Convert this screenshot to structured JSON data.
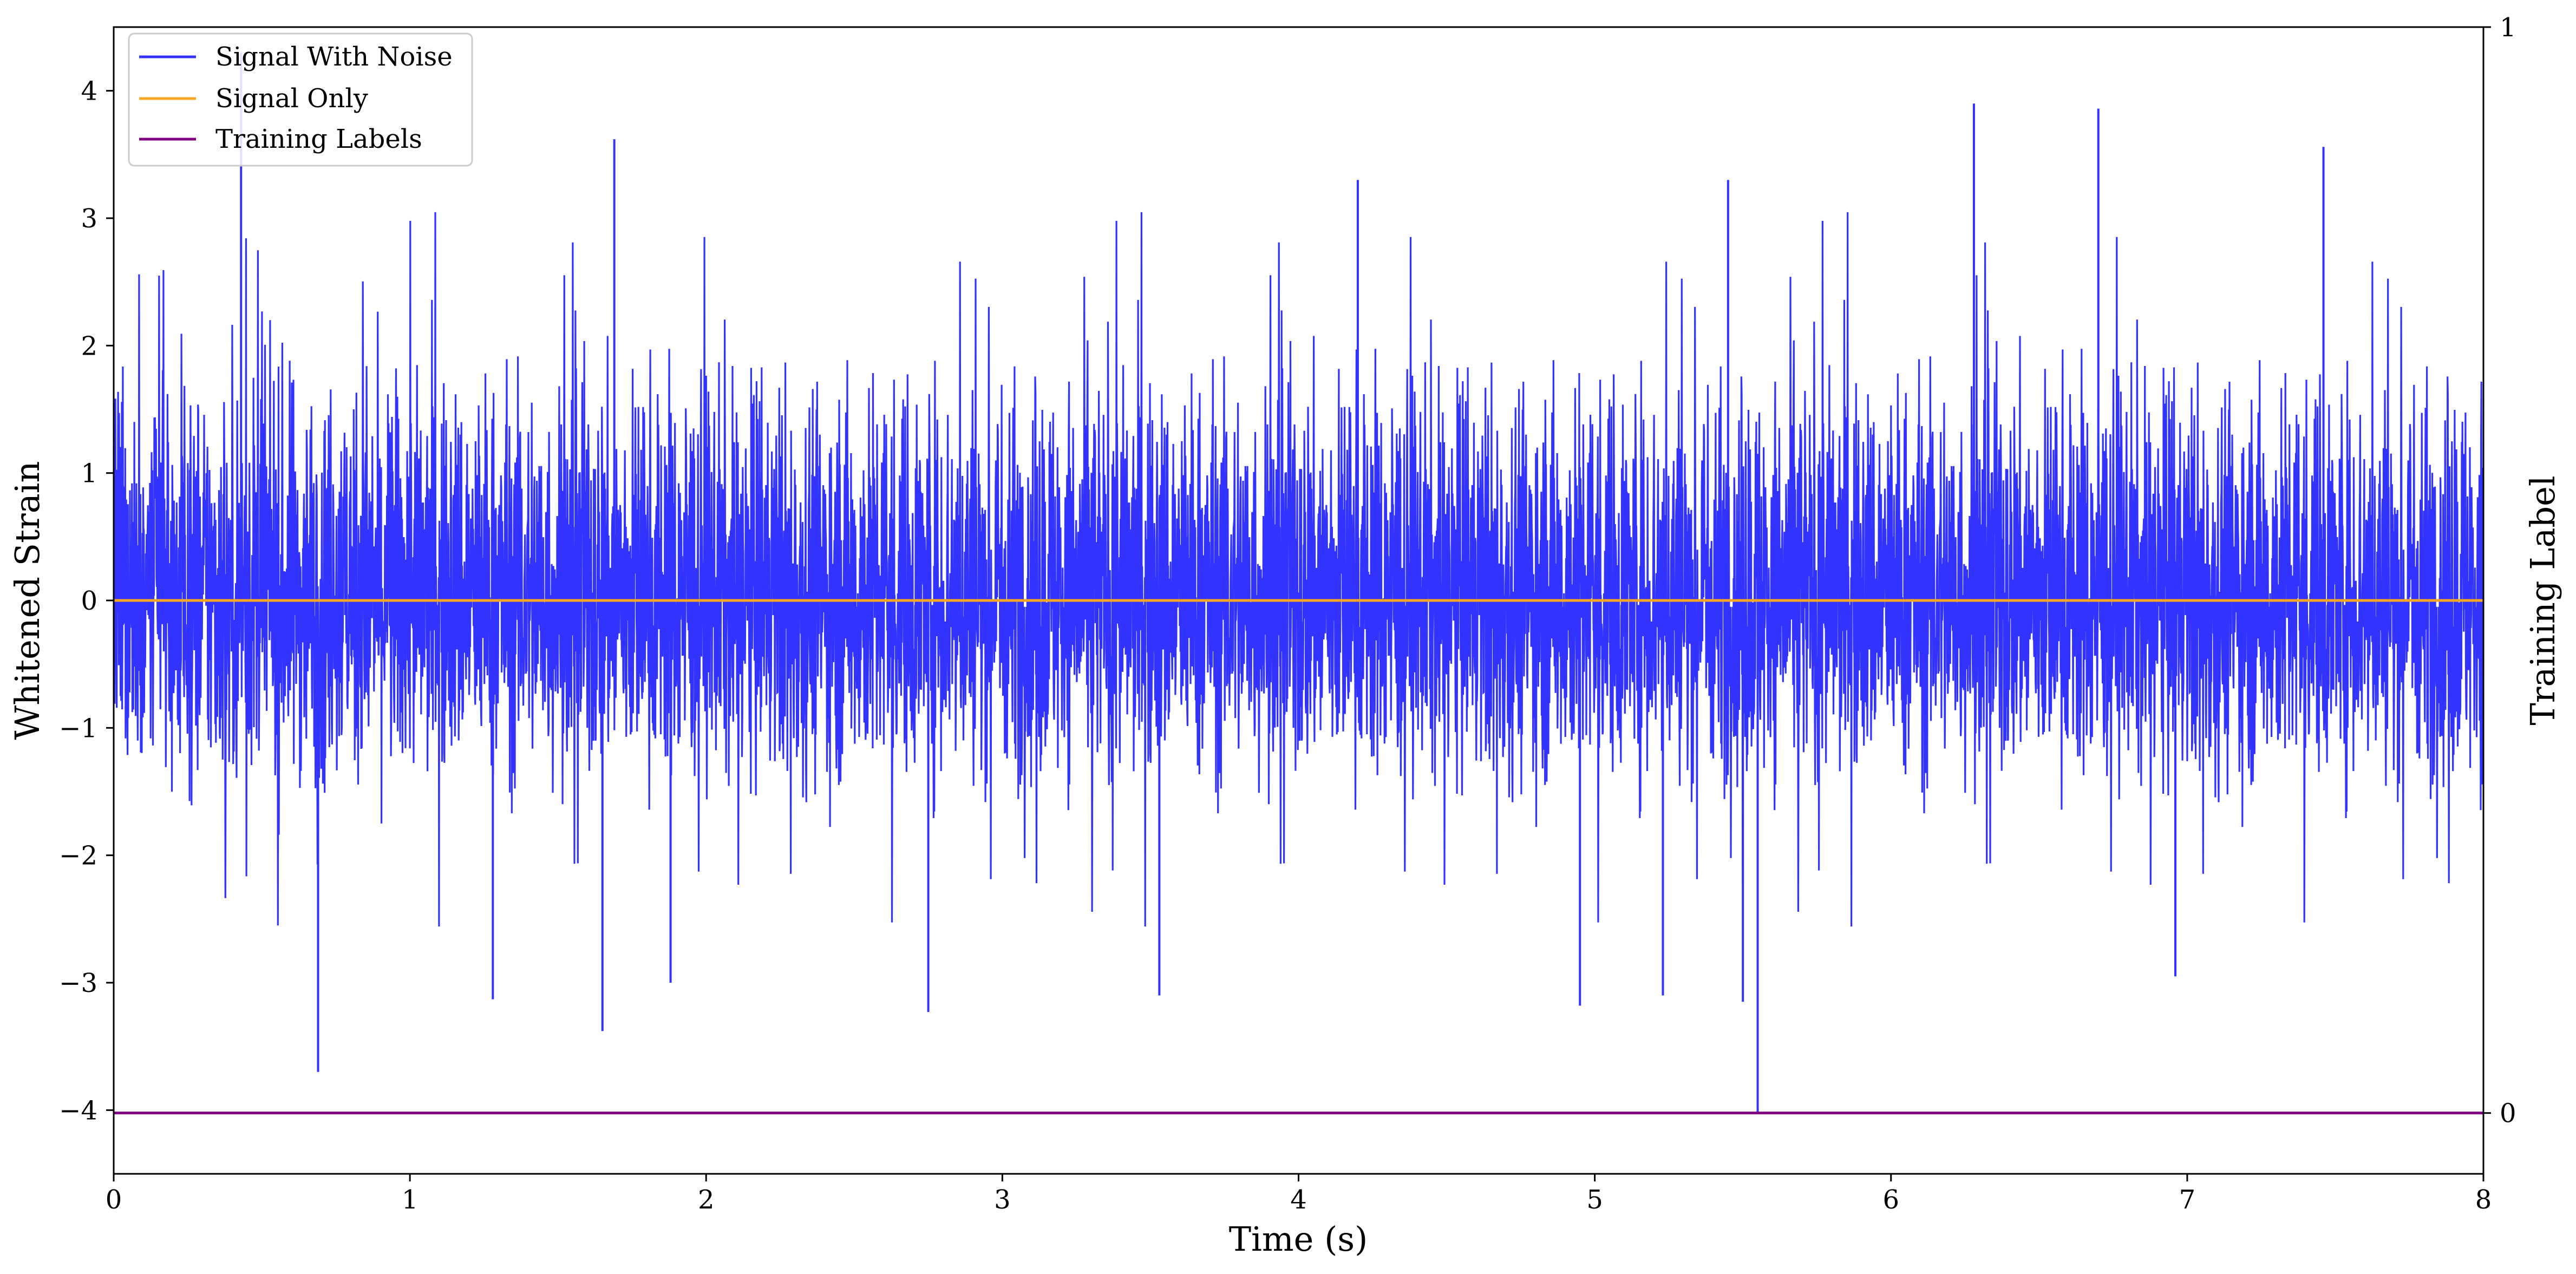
{
  "chart_data": {
    "type": "line",
    "title": "",
    "xlabel": "Time (s)",
    "ylabel": "Whitened Strain",
    "ylabel_right": "Training Label",
    "xlim": [
      0,
      8
    ],
    "ylim": [
      -4.5,
      4.5
    ],
    "ylim_right": [
      -0.056,
      1
    ],
    "x_ticks": [
      "0",
      "1",
      "2",
      "3",
      "4",
      "5",
      "6",
      "7",
      "8"
    ],
    "y_ticks": [
      "4",
      "3",
      "2",
      "1",
      "0",
      "−1",
      "−2",
      "−3",
      "−4"
    ],
    "y_ticks_right": [
      "1",
      "0"
    ],
    "grid": false,
    "legend_position": "top-left",
    "series": [
      {
        "name": "Signal With Noise",
        "color": "#3333ff",
        "axis": "left",
        "x_range": [
          0,
          8
        ],
        "amplitude_typical": [
          -2.0,
          2.5
        ],
        "notable_peaks": [
          {
            "x": 0.43,
            "y": 4.3
          },
          {
            "x": 1.69,
            "y": 3.62
          },
          {
            "x": 6.28,
            "y": 3.9
          },
          {
            "x": 6.7,
            "y": 3.86
          },
          {
            "x": 7.46,
            "y": 3.56
          },
          {
            "x": 4.2,
            "y": 3.3
          },
          {
            "x": 5.45,
            "y": 3.3
          }
        ],
        "notable_troughs": [
          {
            "x": 0.69,
            "y": -3.7
          },
          {
            "x": 1.28,
            "y": -3.13
          },
          {
            "x": 1.65,
            "y": -3.38
          },
          {
            "x": 1.88,
            "y": -3.0
          },
          {
            "x": 2.75,
            "y": -3.23
          },
          {
            "x": 3.53,
            "y": -3.1
          },
          {
            "x": 4.95,
            "y": -3.18
          },
          {
            "x": 5.23,
            "y": -3.1
          },
          {
            "x": 5.5,
            "y": -3.15
          },
          {
            "x": 5.55,
            "y": -4.03
          },
          {
            "x": 6.96,
            "y": -2.95
          }
        ]
      },
      {
        "name": "Signal Only",
        "color": "#f5a623",
        "axis": "left",
        "x": [
          0,
          8
        ],
        "values": [
          0,
          0
        ]
      },
      {
        "name": "Training Labels",
        "color": "#800080",
        "axis": "right",
        "x": [
          0,
          8
        ],
        "values": [
          0,
          0
        ]
      }
    ]
  }
}
